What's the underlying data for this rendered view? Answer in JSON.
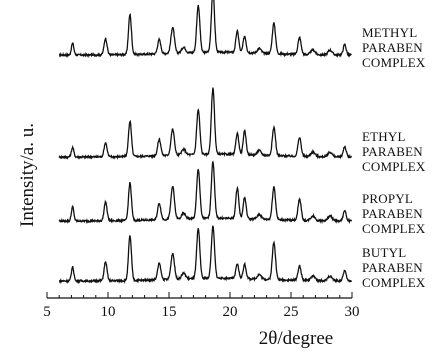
{
  "chart_data": {
    "type": "line",
    "ylabel": "Intensity/a. u.",
    "xlabel": "2θ/degree",
    "xlim": [
      5,
      30
    ],
    "xticks": [
      "5",
      "10",
      "15",
      "20",
      "25",
      "30"
    ],
    "grid": false,
    "peak_positions": [
      7.1,
      9.8,
      11.8,
      14.2,
      15.3,
      17.4,
      18.6,
      20.6,
      21.2,
      23.6,
      25.7,
      29.4
    ],
    "series": [
      {
        "name": "METHYL PARABEN COMPLEX",
        "label_lines": [
          "METHYL",
          "PARABEN",
          "COMPLEX"
        ],
        "peak_heights": [
          0.25,
          0.35,
          0.85,
          0.3,
          0.55,
          1.0,
          1.3,
          0.45,
          0.35,
          0.65,
          0.35,
          0.22
        ]
      },
      {
        "name": "ETHYL PARABEN COMPLEX",
        "label_lines": [
          "ETHYL",
          "PARABEN",
          "COMPLEX"
        ],
        "peak_heights": [
          0.2,
          0.3,
          0.75,
          0.35,
          0.55,
          0.95,
          1.4,
          0.45,
          0.5,
          0.6,
          0.4,
          0.22
        ]
      },
      {
        "name": "PROPYL PARABEN COMPLEX",
        "label_lines": [
          "PROPYL",
          "PARABEN",
          "COMPLEX"
        ],
        "peak_heights": [
          0.3,
          0.4,
          0.8,
          0.35,
          0.7,
          1.05,
          1.2,
          0.65,
          0.45,
          0.7,
          0.45,
          0.22
        ]
      },
      {
        "name": "BUTYL PARABEN COMPLEX",
        "label_lines": [
          "BUTYL",
          "PARABEN",
          "COMPLEX"
        ],
        "peak_heights": [
          0.3,
          0.4,
          0.95,
          0.35,
          0.55,
          1.05,
          1.1,
          0.3,
          0.3,
          0.8,
          0.3,
          0.22
        ]
      }
    ]
  }
}
